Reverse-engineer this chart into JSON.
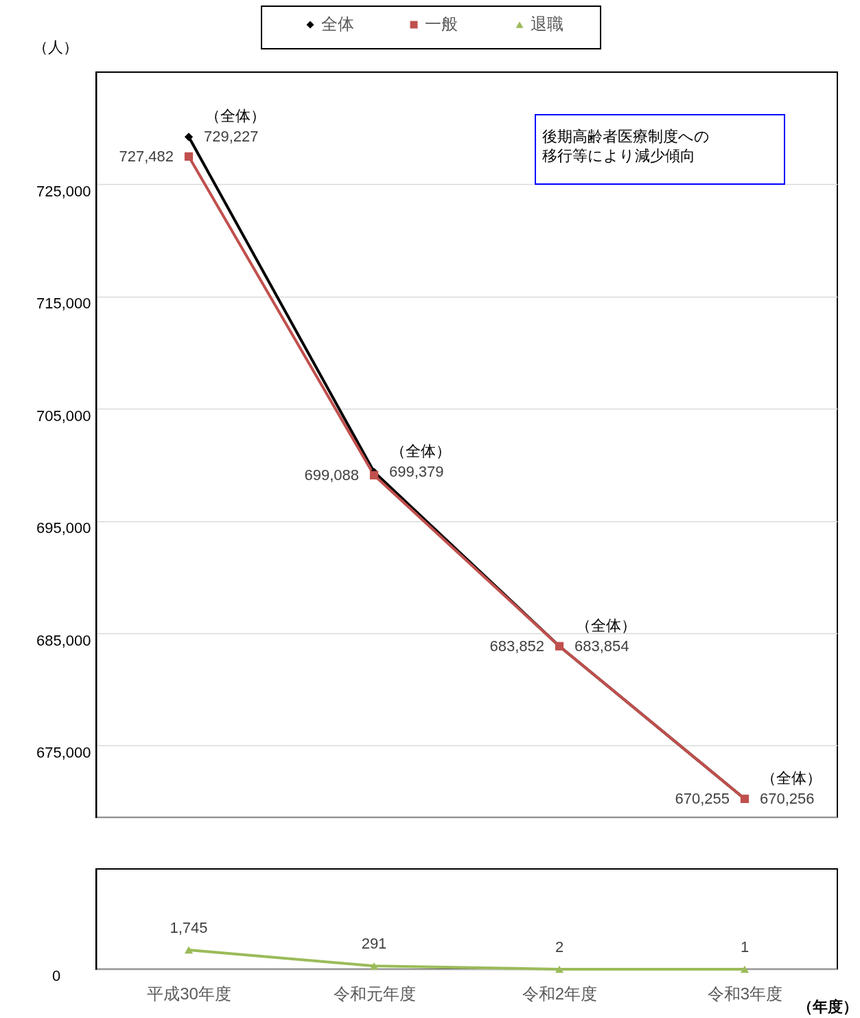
{
  "chart_data": [
    {
      "type": "line",
      "categories": [
        null,
        null,
        null,
        null
      ],
      "ylabel": "（人）",
      "ylim": [
        668600,
        735000
      ],
      "yticks": [
        {
          "value": 675000,
          "label": "675,000"
        },
        {
          "value": 685000,
          "label": "685,000"
        },
        {
          "value": 695000,
          "label": "695,000"
        },
        {
          "value": 705000,
          "label": "705,000"
        },
        {
          "value": 715000,
          "label": "715,000"
        },
        {
          "value": 725000,
          "label": "725,000"
        }
      ],
      "grid": "y",
      "legend": "top",
      "tick_labels": "y",
      "series": [
        {
          "name": "全体",
          "color": "#000000",
          "marker": "diamond",
          "values": [
            729227,
            699379,
            683854,
            670256
          ],
          "value_labels": [
            "729,227",
            "699,379",
            "683,854",
            "670,256"
          ]
        },
        {
          "name": "一般",
          "color": "#c0504d",
          "marker": "square",
          "values": [
            727482,
            699088,
            683852,
            670255
          ],
          "value_labels": [
            "727,482",
            "699,088",
            "683,852",
            "670,255"
          ]
        }
      ],
      "annotations": [
        "（全体）",
        "（全体）",
        "（全体）",
        "（全体）",
        "後期高齢者医療制度への移行等により減少傾向"
      ]
    },
    {
      "type": "line",
      "categories": [
        "平成30年度",
        "令和元年度",
        "令和2年度",
        "令和3年度"
      ],
      "xlabel": "（年度）",
      "legend": "top",
      "series": [
        {
          "name": "退職",
          "color": "#9bbb59",
          "marker": "triangle",
          "values": [
            1745,
            291,
            2,
            1
          ],
          "value_labels": [
            "1,745",
            "291",
            "2",
            "1"
          ]
        }
      ],
      "annotations": [
        "0"
      ]
    }
  ]
}
